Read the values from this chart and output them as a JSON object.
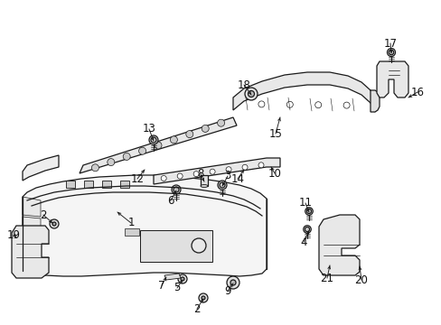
{
  "bg_color": "#ffffff",
  "fig_width": 4.89,
  "fig_height": 3.6,
  "dpi": 100,
  "line_color": "#1a1a1a",
  "label_color": "#111111",
  "label_fs": 8.5,
  "lw": 0.9
}
